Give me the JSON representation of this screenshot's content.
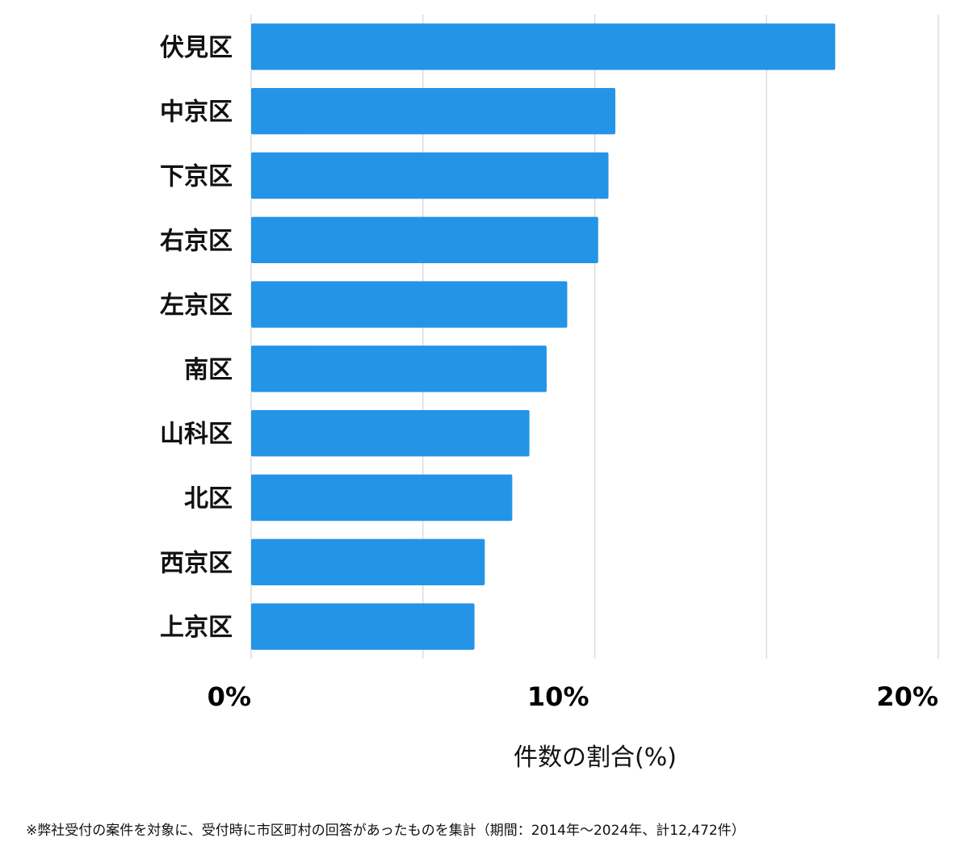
{
  "chart_data": {
    "type": "bar",
    "orientation": "horizontal",
    "categories": [
      "伏見区",
      "中京区",
      "下京区",
      "右京区",
      "左京区",
      "南区",
      "山科区",
      "北区",
      "西京区",
      "上京区"
    ],
    "values": [
      17.0,
      10.6,
      10.4,
      10.1,
      9.2,
      8.6,
      8.1,
      7.6,
      6.8,
      6.5
    ],
    "xlim": [
      0,
      20
    ],
    "x_ticks": [
      0,
      10,
      20
    ],
    "x_tick_labels": [
      "0%",
      "10%",
      "20%"
    ],
    "xlabel": "件数の割合(%)",
    "grid": true,
    "bar_color": "#2494e6",
    "grid_color": "#dddddd"
  },
  "footnote": "※弊社受付の案件を対象に、受付時に市区町村の回答があったものを集計（期間：2014年〜2024年、計12,472件）"
}
